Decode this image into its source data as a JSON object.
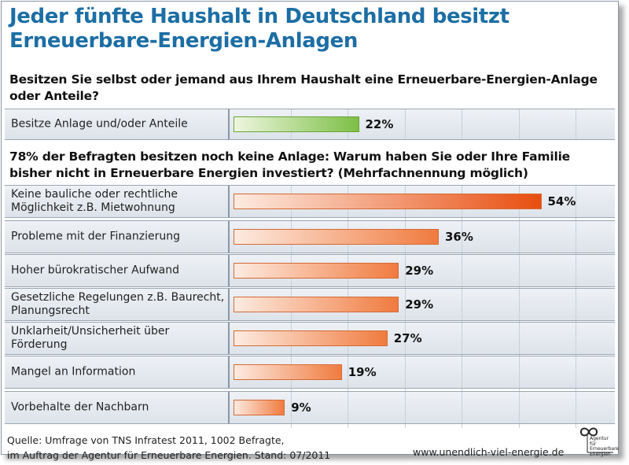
{
  "title_line1": "Jeder fünfte Haushalt in Deutschland besitzt",
  "title_line2": "Erneuerbare-Energien-Anlagen",
  "question1": "Besitzen Sie selbst oder jemand aus Ihrem Haushalt eine Erneuerbare-Energien-Anlage oder Anteile?",
  "question2": "78% der Befragten besitzen noch keine Anlage: Warum haben Sie oder Ihre Familie bisher nicht in Erneuerbare Energien investiert? (Mehrfachnennung möglich)",
  "footer": {
    "source_line1": "Quelle: Umfrage von TNS Infratest 2011, 1002 Befragte,",
    "source_line2": "im Auftrag der Agentur für Erneuerbare Energien. Stand: 07/2011",
    "url": "www.unendlich-viel-energie.de",
    "logo_text": "Agentur für Erneuerbare Energien"
  },
  "colors": {
    "title": "#1c6ea4",
    "bar_green": "#7cbf45",
    "bar_orange": "#f07b3f",
    "bar_orange_max": "#e84e10"
  },
  "chart_data": [
    {
      "type": "bar",
      "orientation": "horizontal",
      "categories": [
        "Besitze Anlage und/oder Anteile"
      ],
      "values": [
        22
      ],
      "value_labels": [
        "22%"
      ],
      "unit": "%"
    },
    {
      "type": "bar",
      "orientation": "horizontal",
      "categories": [
        "Keine bauliche oder rechtliche Möglichkeit z.B. Mietwohnung",
        "Probleme mit der Finanzierung",
        "Hoher bürokratischer Aufwand",
        "Gesetzliche Regelungen z.B. Baurecht, Planungsrecht",
        "Unklarheit/Unsicherheit über Förderung",
        "Mangel an Information",
        "Vorbehalte der Nachbarn"
      ],
      "values": [
        54,
        36,
        29,
        29,
        27,
        19,
        9
      ],
      "value_labels": [
        "54%",
        "36%",
        "29%",
        "29%",
        "27%",
        "19%",
        "9%"
      ],
      "unit": "%",
      "xlim": [
        0,
        100
      ],
      "grid": true
    }
  ]
}
